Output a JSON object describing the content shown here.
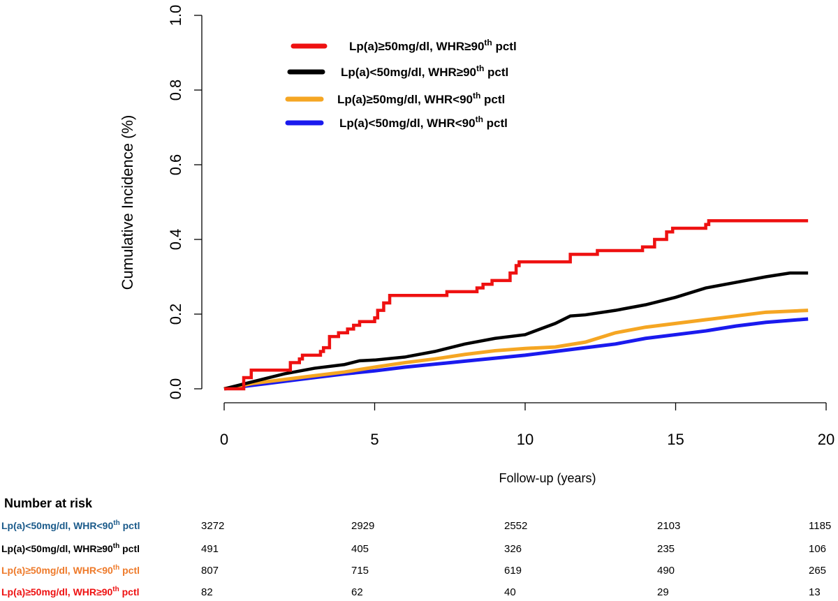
{
  "chart_data": {
    "type": "line",
    "ylabel": "Cumulative Incidence (%)",
    "xlabel": "Follow-up (years)",
    "xlim": [
      0,
      20
    ],
    "ylim": [
      0,
      1.0
    ],
    "x_ticks": [
      "0",
      "5",
      "10",
      "15",
      "20"
    ],
    "y_ticks": [
      "0.0",
      "0.2",
      "0.4",
      "0.6",
      "0.8",
      "1.0"
    ],
    "grid": false,
    "legend_position": "top-left",
    "series": [
      {
        "name": "Lp(a)≥50mg/dl, WHR≥90th pctl",
        "legend_main": "Lp(a)≥50mg/dl, WHR≥90",
        "legend_sup": "th",
        "legend_tail": " pctl",
        "color": "#ee1111",
        "points": [
          [
            0,
            0
          ],
          [
            0.55,
            0
          ],
          [
            0.65,
            0.03
          ],
          [
            0.9,
            0.05
          ],
          [
            2.0,
            0.05
          ],
          [
            2.2,
            0.07
          ],
          [
            2.5,
            0.08
          ],
          [
            2.6,
            0.09
          ],
          [
            3.2,
            0.1
          ],
          [
            3.3,
            0.11
          ],
          [
            3.5,
            0.14
          ],
          [
            3.8,
            0.15
          ],
          [
            4.1,
            0.16
          ],
          [
            4.3,
            0.17
          ],
          [
            4.5,
            0.18
          ],
          [
            5.0,
            0.19
          ],
          [
            5.1,
            0.21
          ],
          [
            5.3,
            0.23
          ],
          [
            5.5,
            0.25
          ],
          [
            7.3,
            0.25
          ],
          [
            7.4,
            0.26
          ],
          [
            8.4,
            0.27
          ],
          [
            8.6,
            0.28
          ],
          [
            8.9,
            0.29
          ],
          [
            9.5,
            0.31
          ],
          [
            9.7,
            0.33
          ],
          [
            9.8,
            0.34
          ],
          [
            11.4,
            0.34
          ],
          [
            11.5,
            0.36
          ],
          [
            12.4,
            0.37
          ],
          [
            13.9,
            0.38
          ],
          [
            14.3,
            0.4
          ],
          [
            14.7,
            0.42
          ],
          [
            14.9,
            0.43
          ],
          [
            16.0,
            0.44
          ],
          [
            16.1,
            0.45
          ],
          [
            19.4,
            0.45
          ]
        ]
      },
      {
        "name": "Lp(a)<50mg/dl, WHR≥90th pctl",
        "legend_main": "Lp(a)<50mg/dl, WHR≥90",
        "legend_sup": "th",
        "legend_tail": " pctl",
        "color": "#000000",
        "points": [
          [
            0,
            0
          ],
          [
            0.5,
            0.01
          ],
          [
            1,
            0.02
          ],
          [
            2,
            0.04
          ],
          [
            3,
            0.055
          ],
          [
            4,
            0.065
          ],
          [
            4.5,
            0.075
          ],
          [
            5,
            0.077
          ],
          [
            6,
            0.085
          ],
          [
            7,
            0.1
          ],
          [
            8,
            0.12
          ],
          [
            9,
            0.135
          ],
          [
            10,
            0.145
          ],
          [
            10.5,
            0.16
          ],
          [
            11,
            0.175
          ],
          [
            11.5,
            0.195
          ],
          [
            12,
            0.198
          ],
          [
            13,
            0.21
          ],
          [
            14,
            0.225
          ],
          [
            15,
            0.245
          ],
          [
            16,
            0.27
          ],
          [
            17,
            0.285
          ],
          [
            18,
            0.3
          ],
          [
            18.8,
            0.31
          ],
          [
            19.4,
            0.31
          ]
        ]
      },
      {
        "name": "Lp(a)≥50mg/dl, WHR<90th pctl",
        "legend_main": "Lp(a)≥50mg/dl, WHR<90",
        "legend_sup": "th",
        "legend_tail": " pctl",
        "color": "#f5a623",
        "points": [
          [
            0,
            0
          ],
          [
            1,
            0.015
          ],
          [
            2,
            0.025
          ],
          [
            3,
            0.035
          ],
          [
            4,
            0.045
          ],
          [
            5,
            0.058
          ],
          [
            6,
            0.07
          ],
          [
            7,
            0.08
          ],
          [
            8,
            0.092
          ],
          [
            9,
            0.102
          ],
          [
            10,
            0.108
          ],
          [
            11,
            0.112
          ],
          [
            12,
            0.125
          ],
          [
            13,
            0.15
          ],
          [
            14,
            0.165
          ],
          [
            15,
            0.175
          ],
          [
            16,
            0.185
          ],
          [
            17,
            0.195
          ],
          [
            18,
            0.205
          ],
          [
            19.4,
            0.21
          ]
        ]
      },
      {
        "name": "Lp(a)<50mg/dl, WHR<90th pctl",
        "legend_main": "Lp(a)<50mg/dl, WHR<90",
        "legend_sup": "th",
        "legend_tail": " pctl",
        "color": "#1a1aee",
        "points": [
          [
            0,
            0
          ],
          [
            1,
            0.01
          ],
          [
            2,
            0.02
          ],
          [
            3,
            0.03
          ],
          [
            4,
            0.04
          ],
          [
            5,
            0.048
          ],
          [
            6,
            0.058
          ],
          [
            7,
            0.066
          ],
          [
            8,
            0.074
          ],
          [
            9,
            0.082
          ],
          [
            10,
            0.09
          ],
          [
            11,
            0.1
          ],
          [
            12,
            0.11
          ],
          [
            13,
            0.12
          ],
          [
            14,
            0.135
          ],
          [
            15,
            0.145
          ],
          [
            16,
            0.155
          ],
          [
            17,
            0.168
          ],
          [
            18,
            0.178
          ],
          [
            19.4,
            0.187
          ]
        ]
      }
    ],
    "number_at_risk": {
      "title": "Number at risk",
      "rows": [
        {
          "main": "Lp(a)<50mg/dl, WHR<90",
          "sup": "th",
          "tail": " pctl",
          "color": "#1a5a8a",
          "values": [
            "3272",
            "2929",
            "2552",
            "2103",
            "1185"
          ]
        },
        {
          "main": "Lp(a)<50mg/dl, WHR≥90",
          "sup": "th",
          "tail": " pctl",
          "color": "#000000",
          "values": [
            "491",
            "405",
            "326",
            "235",
            "106"
          ]
        },
        {
          "main": "Lp(a)≥50mg/dl, WHR<90",
          "sup": "th",
          "tail": " pctl",
          "color": "#ee7a2a",
          "values": [
            "807",
            "715",
            "619",
            "490",
            "265"
          ]
        },
        {
          "main": "Lp(a)≥50mg/dl, WHR≥90",
          "sup": "th",
          "tail": " pctl",
          "color": "#ee1111",
          "values": [
            "82",
            "62",
            "40",
            "29",
            "13"
          ]
        }
      ]
    }
  }
}
